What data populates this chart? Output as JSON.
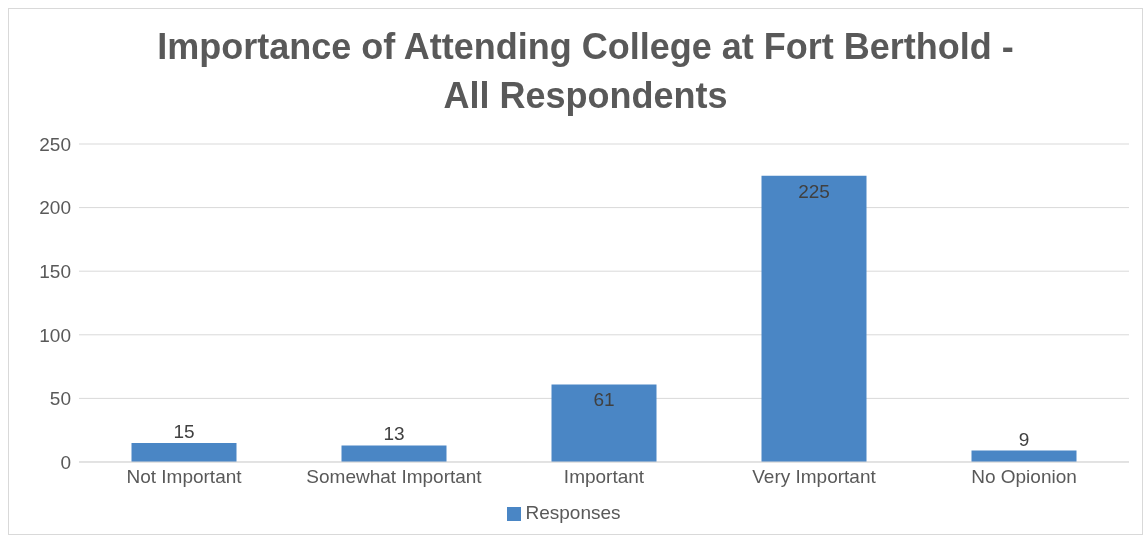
{
  "chart_data": {
    "type": "bar",
    "title": "Importance of Attending College at Fort Berthold -\nAll Respondents",
    "categories": [
      "Not Important",
      "Somewhat Important",
      "Important",
      "Very Important",
      "No Opionion"
    ],
    "series": [
      {
        "name": "Responses",
        "color": "#4a86c5",
        "values": [
          15,
          13,
          61,
          225,
          9
        ]
      }
    ],
    "ylim": [
      0,
      250
    ],
    "yticks": [
      0,
      50,
      100,
      150,
      200,
      250
    ],
    "grid": "y",
    "legend": "bottom",
    "data_labels": true
  }
}
